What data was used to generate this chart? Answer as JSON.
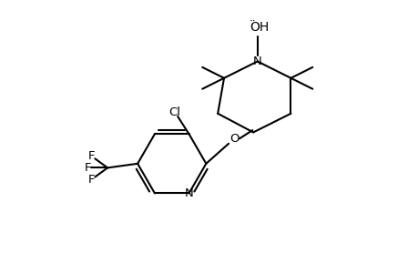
{
  "background": "#ffffff",
  "line_color": "#000000",
  "line_width": 1.5,
  "font_size": 9.5,
  "figsize": [
    4.6,
    3.0
  ],
  "dpi": 100,
  "xlim": [
    0,
    10
  ],
  "ylim": [
    0,
    6.5
  ]
}
